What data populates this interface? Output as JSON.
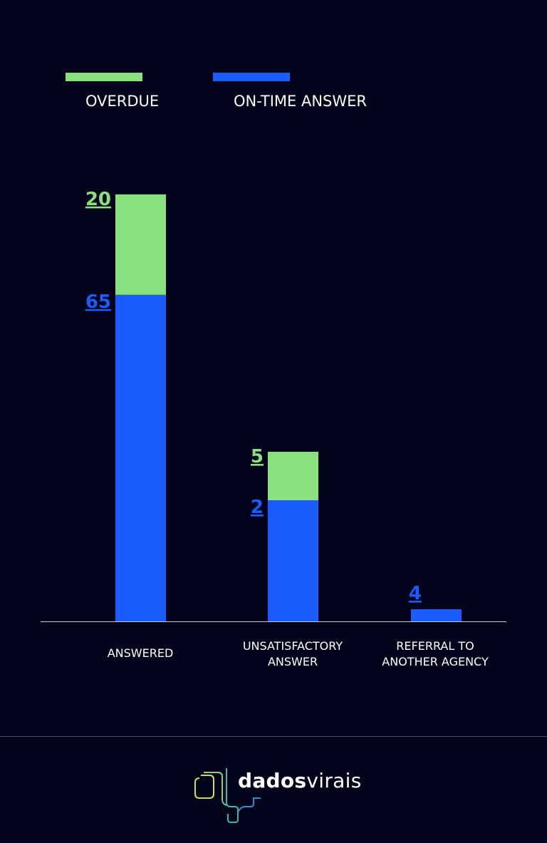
{
  "legend": [
    {
      "label": "OVERDUE",
      "color": "#88e07f"
    },
    {
      "label": "ON-TIME ANSWER",
      "color": "#1a5cff"
    }
  ],
  "categories": [
    {
      "line1": "ANSWERED",
      "line2": ""
    },
    {
      "line1": "UNSATISFACTORY",
      "line2": "ANSWER"
    },
    {
      "line1": "REFERRAL TO",
      "line2": "ANOTHER AGENCY"
    }
  ],
  "chart_data": {
    "type": "bar",
    "stacked": true,
    "categories": [
      "ANSWERED",
      "UNSATISFACTORY ANSWER",
      "REFERRAL TO ANOTHER AGENCY"
    ],
    "series": [
      {
        "name": "ON-TIME ANSWER",
        "color": "#1a5cff",
        "values": [
          65,
          2,
          4
        ]
      },
      {
        "name": "OVERDUE",
        "color": "#88e07f",
        "values": [
          20,
          5,
          0
        ]
      }
    ],
    "data_labels": [
      {
        "category": 0,
        "series": "OVERDUE",
        "text": "20"
      },
      {
        "category": 0,
        "series": "ON-TIME ANSWER",
        "text": "65"
      },
      {
        "category": 1,
        "series": "OVERDUE",
        "text": "5"
      },
      {
        "category": 1,
        "series": "ON-TIME ANSWER",
        "text": "2"
      },
      {
        "category": 2,
        "series": "ON-TIME ANSWER",
        "text": "4"
      }
    ],
    "legend_position": "top-left",
    "grid": false
  },
  "logo": {
    "bold": "dados",
    "light": "virais"
  }
}
